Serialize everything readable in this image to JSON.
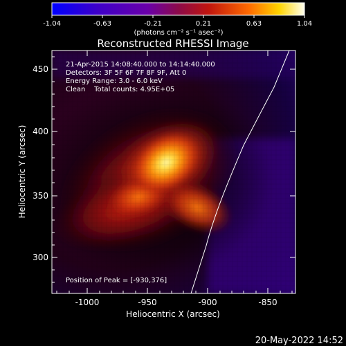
{
  "colorbar": {
    "ticks": [
      "-1.04",
      "-0.63",
      "-0.21",
      "0.21",
      "0.63",
      "1.04"
    ],
    "unit_label": "(photons cm⁻² s⁻¹ asec⁻²)"
  },
  "title": "Reconstructed RHESSI Image",
  "annotations": {
    "time_range": "21-Apr-2015 14:08:40.000 to 14:14:40.000",
    "detectors": "Detectors: 3F 5F 6F 7F 8F 9F, Att 0",
    "energy": "Energy Range: 3.0 - 6.0 keV",
    "clean_total": "Clean    Total counts: 4.95E+05",
    "peak": "Position of Peak = [-930,376]"
  },
  "axes": {
    "xlabel": "Heliocentric X (arcsec)",
    "ylabel": "Heliocentric Y (arcsec)",
    "xticks": [
      "-1000",
      "-950",
      "-900",
      "-850"
    ],
    "yticks": [
      "300",
      "350",
      "400",
      "450"
    ],
    "xlim": [
      -1025,
      -830
    ],
    "ylim": [
      270,
      465
    ]
  },
  "footer": {
    "timestamp": "20-May-2022 14:52"
  }
}
